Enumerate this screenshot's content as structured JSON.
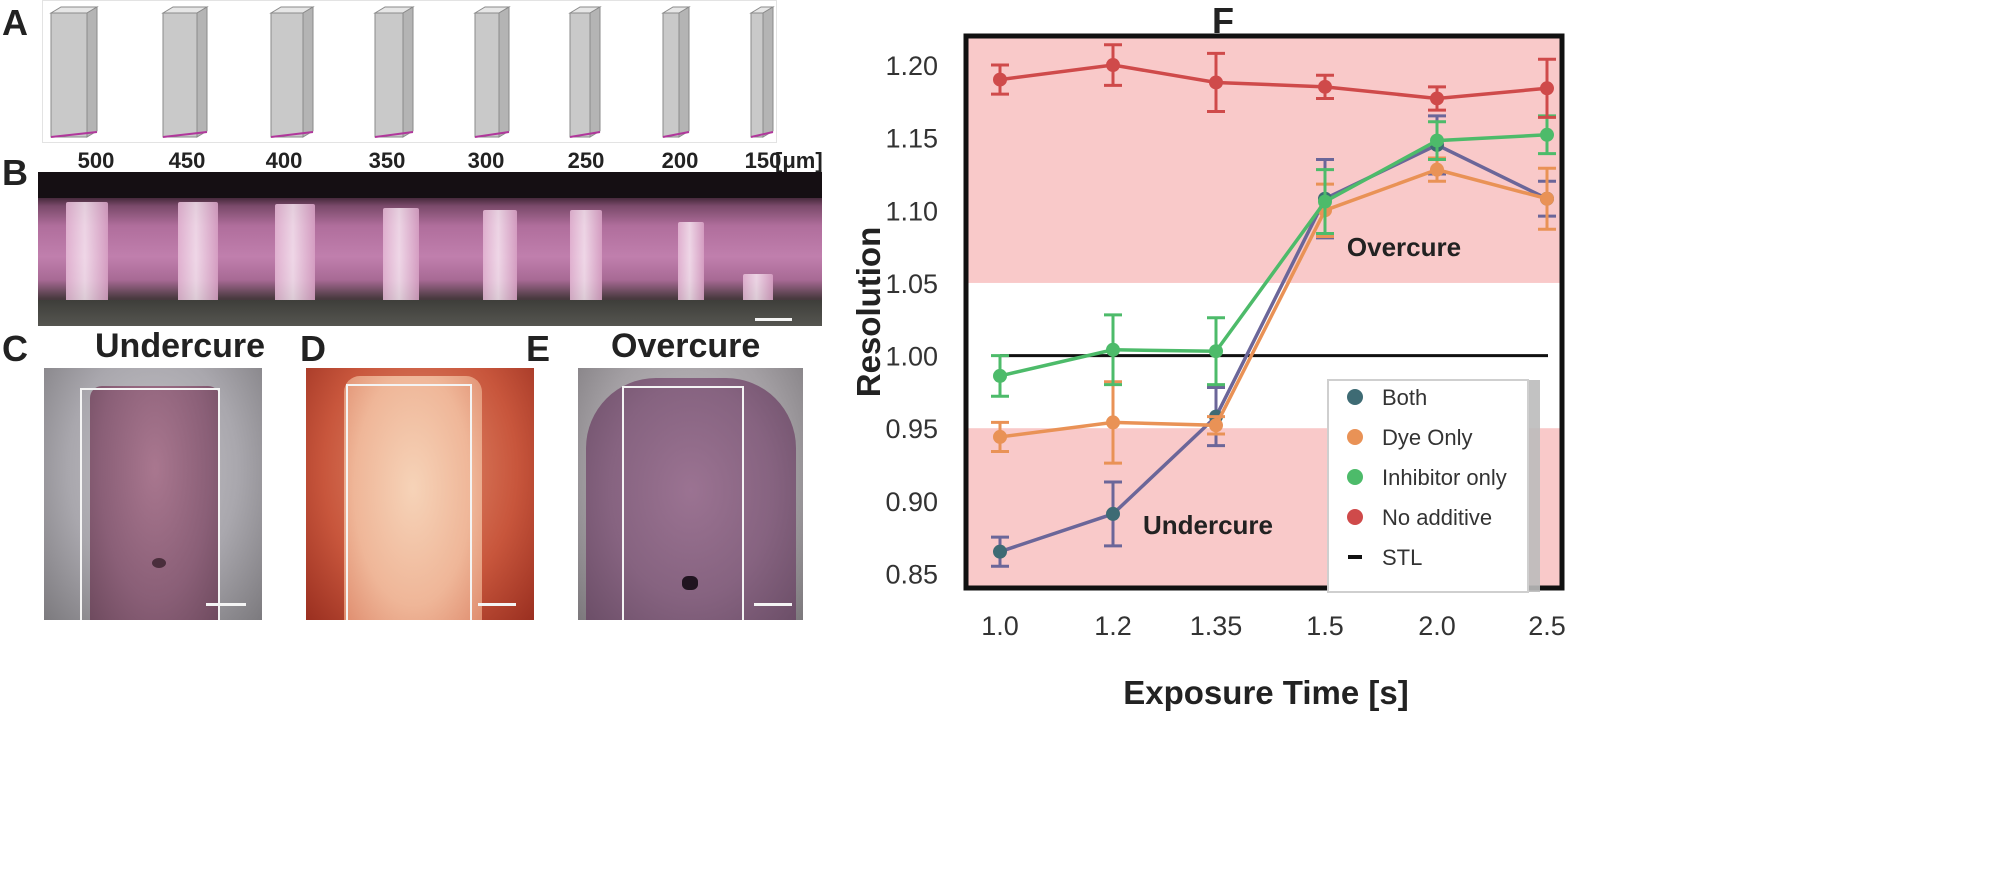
{
  "panels": {
    "a": "A",
    "b": "B",
    "c": "C",
    "d": "D",
    "e": "E",
    "f": "F"
  },
  "pillars": {
    "labels": [
      "500",
      "450",
      "400",
      "350",
      "300",
      "250",
      "200",
      "150"
    ],
    "unit": "[μm]"
  },
  "photos": {
    "c_title": "Undercure",
    "e_title": "Overcure"
  },
  "chart_data": {
    "type": "line",
    "xlabel": "Exposure Time [s]",
    "ylabel": "Resolution",
    "categories": [
      "1.0",
      "1.2",
      "1.35",
      "1.5",
      "2.0",
      "2.5"
    ],
    "ylim": [
      0.84,
      1.22
    ],
    "yticks": [
      "0.85",
      "0.90",
      "0.95",
      "1.00",
      "1.05",
      "1.10",
      "1.15",
      "1.20"
    ],
    "grid": false,
    "legend_position": "lower-right",
    "bands": [
      {
        "from": 1.05,
        "to": 1.22,
        "label": "Overcure",
        "color": "#f9c9c9"
      },
      {
        "from": 0.84,
        "to": 0.95,
        "label": "Undercure",
        "color": "#f9c9c9"
      }
    ],
    "series": [
      {
        "name": "Both",
        "color": "#6b6699",
        "marker": "#3e6b74",
        "values": [
          0.865,
          0.891,
          0.958,
          1.108,
          1.145,
          1.108
        ],
        "errors": [
          0.01,
          0.022,
          0.02,
          0.027,
          0.02,
          0.012
        ]
      },
      {
        "name": "Dye Only",
        "color": "#e99256",
        "marker": "#e99256",
        "values": [
          0.944,
          0.954,
          0.952,
          1.1,
          1.128,
          1.108
        ],
        "errors": [
          0.01,
          0.028,
          0.006,
          0.018,
          0.008,
          0.021
        ]
      },
      {
        "name": "Inhibitor only",
        "color": "#4dbb6a",
        "marker": "#4dbb6a",
        "values": [
          0.986,
          1.004,
          1.003,
          1.106,
          1.148,
          1.152
        ],
        "errors": [
          0.014,
          0.024,
          0.023,
          0.022,
          0.013,
          0.013
        ]
      },
      {
        "name": "No additive",
        "color": "#cf4a4a",
        "marker": "#cf4a4a",
        "values": [
          1.19,
          1.2,
          1.188,
          1.185,
          1.177,
          1.184
        ],
        "errors": [
          0.01,
          0.014,
          0.02,
          0.008,
          0.008,
          0.02
        ]
      }
    ],
    "reference": {
      "name": "STL",
      "value": 1.0,
      "color": "#111111"
    }
  }
}
